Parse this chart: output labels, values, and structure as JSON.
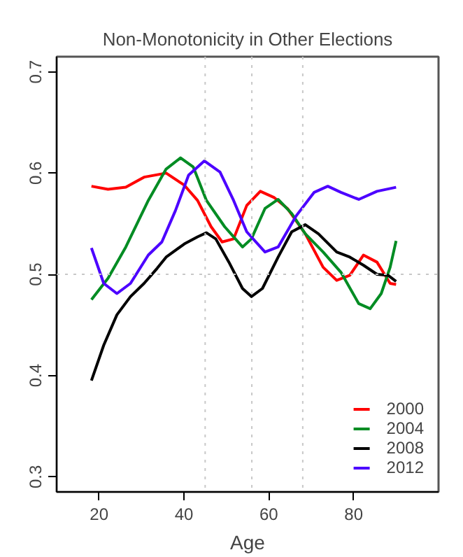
{
  "chart_data": {
    "type": "line",
    "title": "Non-Monotonicity in Other Elections",
    "xlabel": "Age",
    "xlim": [
      10,
      100
    ],
    "ylim": [
      0.285,
      0.715
    ],
    "xticks": [
      20,
      40,
      60,
      80
    ],
    "yticks": [
      0.3,
      0.4,
      0.5,
      0.6,
      0.7
    ],
    "grid": false,
    "legend": "bottom right",
    "line_style": "solid",
    "ref_lines": [
      {
        "axis": "x",
        "value": 45,
        "color": "#c8c8c8",
        "line_style": "dotted"
      },
      {
        "axis": "x",
        "value": 56,
        "color": "#c8c8c8",
        "line_style": "dotted"
      },
      {
        "axis": "x",
        "value": 68,
        "color": "#c8c8c8",
        "line_style": "dotted"
      },
      {
        "axis": "y",
        "value": 0.5,
        "color": "#c8c8c8",
        "line_style": "dotted"
      }
    ],
    "series": [
      {
        "name": "2000",
        "color": "#ff0000",
        "x": [
          18.2,
          22.1,
          26.3,
          30.6,
          35.8,
          40.1,
          43.2,
          46.4,
          49.0,
          51.7,
          54.8,
          58.0,
          61.2,
          64.4,
          68.6,
          72.8,
          76.0,
          79.1,
          82.3,
          85.5,
          88.6,
          90
        ],
        "values": [
          0.587,
          0.584,
          0.586,
          0.596,
          0.6,
          0.588,
          0.573,
          0.547,
          0.532,
          0.535,
          0.568,
          0.582,
          0.576,
          0.565,
          0.54,
          0.507,
          0.494,
          0.499,
          0.519,
          0.512,
          0.491,
          0.49
        ]
      },
      {
        "name": "2004",
        "color": "#008c23",
        "x": [
          18.2,
          22.1,
          26.3,
          31.6,
          35.8,
          39.2,
          42.2,
          45.3,
          49.6,
          53.8,
          55.9,
          59.1,
          62.2,
          65.4,
          68.6,
          72.8,
          77.0,
          81.2,
          83.9,
          86.5,
          88.6,
          90
        ],
        "values": [
          0.475,
          0.496,
          0.527,
          0.573,
          0.604,
          0.615,
          0.606,
          0.573,
          0.547,
          0.527,
          0.535,
          0.565,
          0.574,
          0.56,
          0.54,
          0.522,
          0.502,
          0.471,
          0.466,
          0.481,
          0.507,
          0.533
        ]
      },
      {
        "name": "2008",
        "color": "#000000",
        "x": [
          18.2,
          21.1,
          24.2,
          27.4,
          30.6,
          33.7,
          35.8,
          40.1,
          43.2,
          45.3,
          47.5,
          50.6,
          53.8,
          55.9,
          58.5,
          62.2,
          65.4,
          68.6,
          71.7,
          76.0,
          79.1,
          82.3,
          85.5,
          88.1,
          90
        ],
        "values": [
          0.395,
          0.43,
          0.46,
          0.478,
          0.491,
          0.506,
          0.517,
          0.53,
          0.537,
          0.541,
          0.535,
          0.512,
          0.486,
          0.478,
          0.486,
          0.517,
          0.542,
          0.549,
          0.54,
          0.522,
          0.517,
          0.509,
          0.5,
          0.499,
          0.493
        ]
      },
      {
        "name": "2012",
        "color": "#4c00ff",
        "x": [
          18.2,
          21.1,
          24.2,
          27.4,
          31.6,
          34.8,
          38.0,
          41.1,
          44.8,
          48.5,
          51.7,
          54.8,
          59.1,
          62.2,
          66.5,
          70.7,
          73.9,
          77.0,
          81.2,
          85.5,
          90
        ],
        "values": [
          0.526,
          0.491,
          0.481,
          0.491,
          0.519,
          0.532,
          0.563,
          0.598,
          0.612,
          0.601,
          0.573,
          0.542,
          0.522,
          0.527,
          0.558,
          0.581,
          0.587,
          0.581,
          0.574,
          0.582,
          0.586
        ]
      }
    ]
  }
}
